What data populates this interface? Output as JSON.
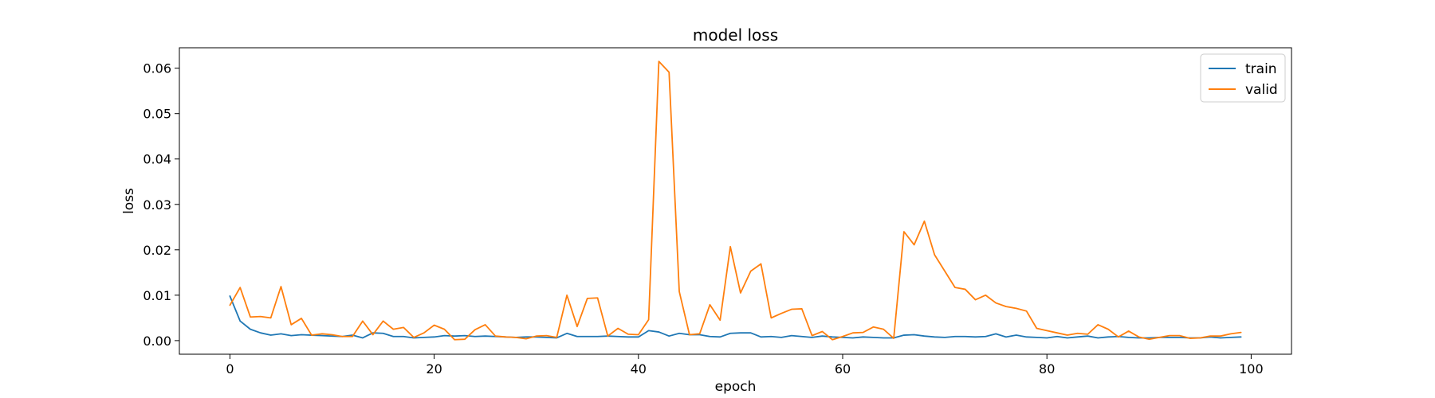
{
  "chart_data": {
    "type": "line",
    "title": "model loss",
    "xlabel": "epoch",
    "ylabel": "loss",
    "xlim": [
      -4.95,
      103.95
    ],
    "ylim": [
      -0.003,
      0.0645
    ],
    "xticks": [
      0,
      20,
      40,
      60,
      80,
      100
    ],
    "yticks": [
      0.0,
      0.01,
      0.02,
      0.03,
      0.04,
      0.05,
      0.06
    ],
    "ytick_labels": [
      "0.00",
      "0.01",
      "0.02",
      "0.03",
      "0.04",
      "0.05",
      "0.06"
    ],
    "legend_position": "top-right",
    "grid": false,
    "series": [
      {
        "name": "train",
        "color": "#1f77b4",
        "values": [
          0.0098,
          0.0043,
          0.0025,
          0.0017,
          0.0012,
          0.0015,
          0.0011,
          0.0013,
          0.0012,
          0.0011,
          0.001,
          0.0009,
          0.0012,
          0.0006,
          0.0017,
          0.0016,
          0.0009,
          0.0009,
          0.0006,
          0.0007,
          0.0008,
          0.0011,
          0.001,
          0.0011,
          0.0009,
          0.001,
          0.0009,
          0.0008,
          0.0007,
          0.0008,
          0.0008,
          0.0007,
          0.0006,
          0.0016,
          0.0009,
          0.0009,
          0.0009,
          0.001,
          0.0009,
          0.0008,
          0.0008,
          0.0022,
          0.0019,
          0.001,
          0.0016,
          0.0013,
          0.0013,
          0.0009,
          0.0008,
          0.0016,
          0.0017,
          0.0017,
          0.0008,
          0.0009,
          0.0007,
          0.0011,
          0.0009,
          0.0007,
          0.001,
          0.0008,
          0.0007,
          0.0006,
          0.0008,
          0.0007,
          0.0006,
          0.0006,
          0.0012,
          0.0013,
          0.001,
          0.0008,
          0.0007,
          0.0009,
          0.0009,
          0.0008,
          0.0009,
          0.0015,
          0.0008,
          0.0012,
          0.0008,
          0.0007,
          0.0006,
          0.0009,
          0.0006,
          0.0008,
          0.001,
          0.0006,
          0.0008,
          0.0009,
          0.0007,
          0.0006,
          0.0006,
          0.0007,
          0.0007,
          0.0007,
          0.0006,
          0.0006,
          0.0008,
          0.0006,
          0.0007,
          0.0008
        ]
      },
      {
        "name": "valid",
        "color": "#ff7f0e",
        "values": [
          0.0078,
          0.0117,
          0.0052,
          0.0053,
          0.005,
          0.0119,
          0.0035,
          0.0049,
          0.0012,
          0.0015,
          0.0013,
          0.0009,
          0.0009,
          0.0043,
          0.0013,
          0.0043,
          0.0025,
          0.0029,
          0.0007,
          0.0017,
          0.0034,
          0.0025,
          0.0002,
          0.0003,
          0.0024,
          0.0035,
          0.001,
          0.0008,
          0.0007,
          0.0004,
          0.001,
          0.0011,
          0.0007,
          0.01,
          0.0031,
          0.0093,
          0.0094,
          0.001,
          0.0027,
          0.0014,
          0.0013,
          0.0046,
          0.0615,
          0.0591,
          0.0108,
          0.0013,
          0.0015,
          0.0079,
          0.0045,
          0.0207,
          0.0105,
          0.0153,
          0.0169,
          0.005,
          0.006,
          0.0069,
          0.007,
          0.0011,
          0.002,
          0.0002,
          0.0009,
          0.0017,
          0.0018,
          0.003,
          0.0025,
          0.0005,
          0.024,
          0.0211,
          0.0263,
          0.0189,
          0.0153,
          0.0117,
          0.0113,
          0.009,
          0.01,
          0.0083,
          0.0075,
          0.0071,
          0.0065,
          0.0027,
          0.0022,
          0.0017,
          0.0012,
          0.0016,
          0.0014,
          0.0035,
          0.0025,
          0.0008,
          0.0021,
          0.0008,
          0.0003,
          0.0007,
          0.0011,
          0.0011,
          0.0005,
          0.0006,
          0.001,
          0.001,
          0.0015,
          0.0018
        ]
      }
    ]
  }
}
